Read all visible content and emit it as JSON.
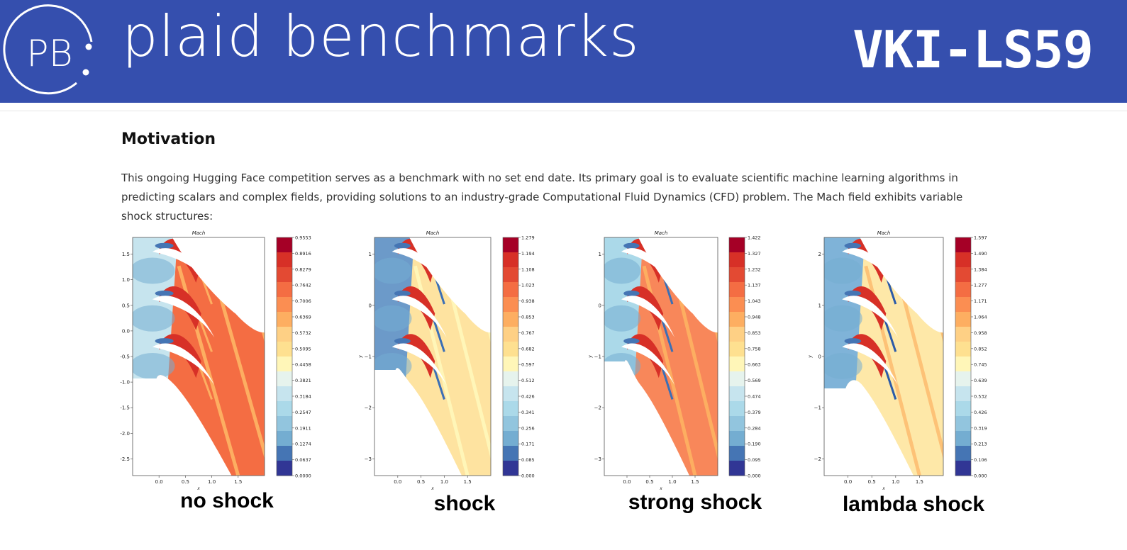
{
  "header": {
    "logo_text": "PB",
    "brand_name": "plaid benchmarks",
    "dataset_name": "VKI-LS59",
    "background_color": "#354fae"
  },
  "motivation": {
    "title": "Motivation",
    "paragraph": "This ongoing Hugging Face competition serves as a benchmark with no set end date. Its primary goal is to evaluate scientific machine learning algorithms in predicting scalars and complex fields, providing solutions to an industry-grade Computational Fluid Dynamics (CFD) problem. The Mach field exhibits variable shock structures:"
  },
  "figures": [
    {
      "label": "no shock",
      "plot_title": "Mach",
      "xlabel": "x",
      "ylabel": "",
      "x_ticks": [
        "0.0",
        "0.5",
        "1.0",
        "1.5"
      ],
      "y_ticks": [
        "1.5",
        "1.0",
        "0.5",
        "0.0",
        "-0.5",
        "-1.0",
        "-1.5",
        "-2.0",
        "-2.5"
      ],
      "colorbar_ticks": [
        "0.9553",
        "0.8916",
        "0.8279",
        "0.7642",
        "0.7006",
        "0.6369",
        "0.5732",
        "0.5095",
        "0.4458",
        "0.3821",
        "0.3184",
        "0.2547",
        "0.1911",
        "0.1274",
        "0.0637",
        "0.0000"
      ]
    },
    {
      "label": "shock",
      "plot_title": "Mach",
      "xlabel": "x",
      "ylabel": "y",
      "x_ticks": [
        "0.0",
        "0.5",
        "1.0",
        "1.5"
      ],
      "y_ticks": [
        "1",
        "0",
        "−1",
        "−2",
        "−3"
      ],
      "colorbar_ticks": [
        "1.279",
        "1.194",
        "1.108",
        "1.023",
        "0.938",
        "0.853",
        "0.767",
        "0.682",
        "0.597",
        "0.512",
        "0.426",
        "0.341",
        "0.256",
        "0.171",
        "0.085",
        "0.000"
      ]
    },
    {
      "label": "strong shock",
      "plot_title": "Mach",
      "xlabel": "x",
      "ylabel": "y",
      "x_ticks": [
        "0.0",
        "0.5",
        "1.0",
        "1.5"
      ],
      "y_ticks": [
        "1",
        "0",
        "−1",
        "−2",
        "−3"
      ],
      "colorbar_ticks": [
        "1.422",
        "1.327",
        "1.232",
        "1.137",
        "1.043",
        "0.948",
        "0.853",
        "0.758",
        "0.663",
        "0.569",
        "0.474",
        "0.379",
        "0.284",
        "0.190",
        "0.095",
        "0.000"
      ]
    },
    {
      "label": "lambda shock",
      "plot_title": "Mach",
      "xlabel": "x",
      "ylabel": "y",
      "x_ticks": [
        "0.0",
        "0.5",
        "1.0",
        "1.5"
      ],
      "y_ticks": [
        "2",
        "1",
        "0",
        "−1",
        "−2"
      ],
      "colorbar_ticks": [
        "1.597",
        "1.490",
        "1.384",
        "1.277",
        "1.171",
        "1.064",
        "0.958",
        "0.852",
        "0.745",
        "0.639",
        "0.532",
        "0.426",
        "0.319",
        "0.213",
        "0.106",
        "0.000"
      ]
    }
  ],
  "colormap": [
    "#a50026",
    "#d73027",
    "#e34a33",
    "#f46d43",
    "#fb8e52",
    "#fdae61",
    "#fed085",
    "#fee090",
    "#fff6b8",
    "#e6f3ed",
    "#c6e4ee",
    "#abd9e9",
    "#92c5de",
    "#74add1",
    "#4575b4",
    "#313695"
  ],
  "field_colors": {
    "no_shock": {
      "inlet": "#c6e4ee",
      "outlet": "#f46d43",
      "stripe": "#fdae61",
      "shock": "#fdae61"
    },
    "shock": {
      "inlet": "#6c9ac9",
      "outlet": "#fee3a0",
      "stripe": "#fff6b8",
      "shock": "#3b6fb5"
    },
    "strong_shock": {
      "inlet": "#abd9e9",
      "outlet": "#f8875a",
      "stripe": "#fdae61",
      "shock": "#3b6fb5"
    },
    "lambda_shock": {
      "inlet": "#7fb3d8",
      "outlet": "#fee8a8",
      "stripe": "#fdc277",
      "shock": "#2b5aa8"
    }
  }
}
